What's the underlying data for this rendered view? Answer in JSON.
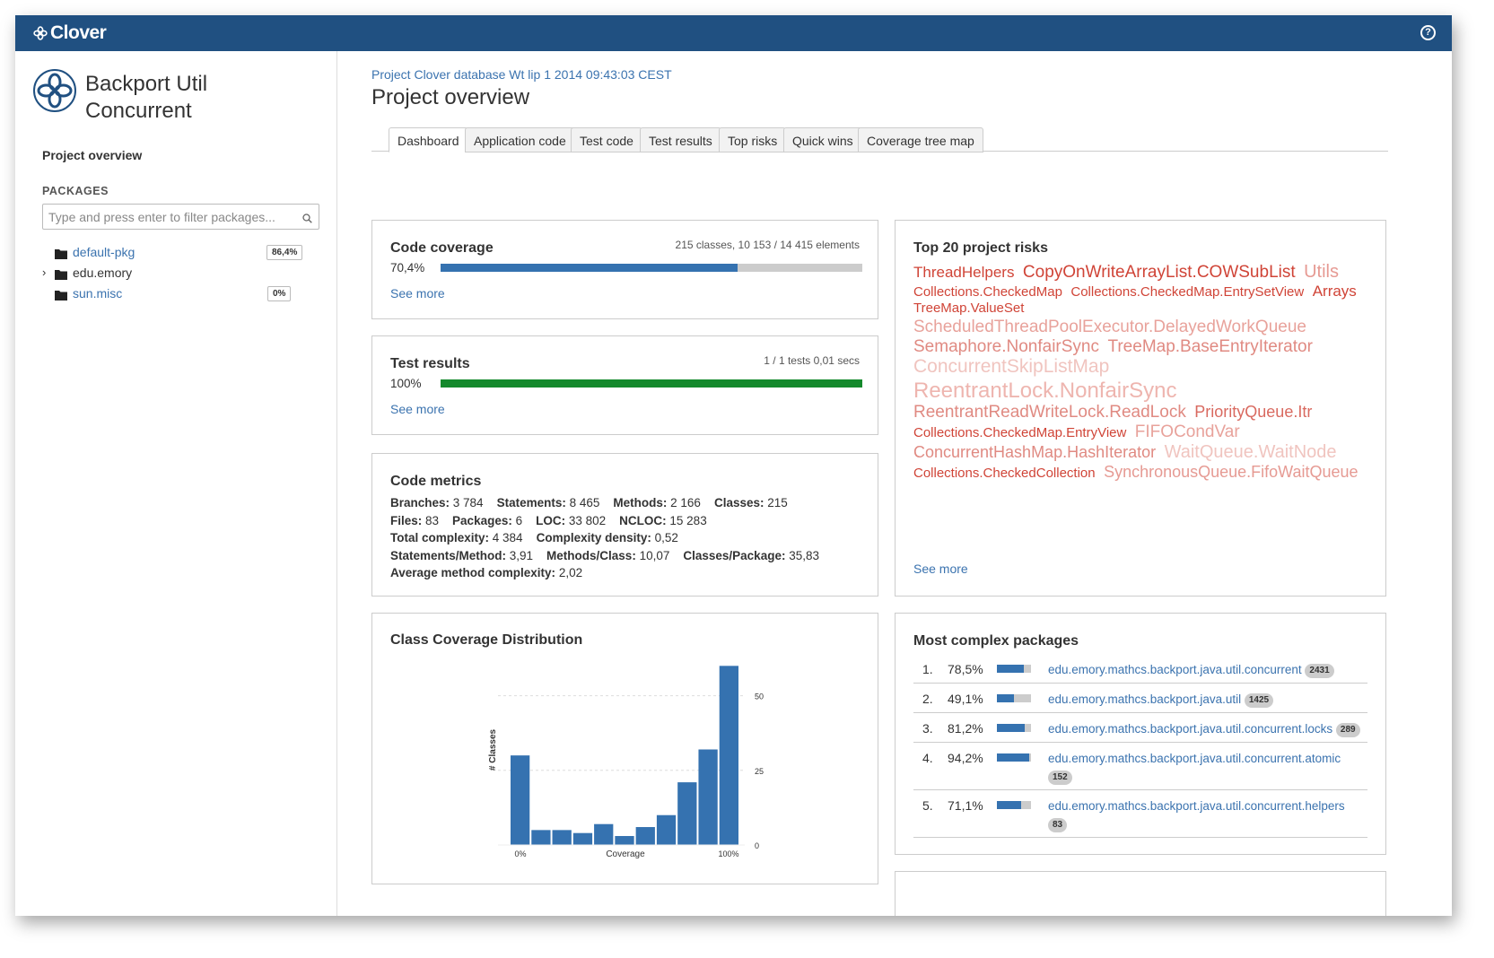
{
  "app": {
    "brand": "Clover",
    "help_label": "?"
  },
  "sidebar": {
    "project_name": "Backport Util Concurrent",
    "overview_link": "Project overview",
    "packages_heading": "PACKAGES",
    "filter_placeholder": "Type and press enter to filter packages...",
    "packages": [
      {
        "name": "default-pkg",
        "badge": "86,4%",
        "expandable": false
      },
      {
        "name": "edu.emory",
        "badge": "",
        "expandable": true
      },
      {
        "name": "sun.misc",
        "badge": "0%",
        "expandable": false
      }
    ]
  },
  "header": {
    "db_line": "Project Clover database Wt lip 1 2014 09:43:03 CEST",
    "title": "Project overview"
  },
  "tabs": [
    "Dashboard",
    "Application code",
    "Test code",
    "Test results",
    "Top risks",
    "Quick wins",
    "Coverage tree map"
  ],
  "active_tab": "Dashboard",
  "coverage": {
    "title": "Code coverage",
    "meta": "215 classes, 10 153 / 14 415 elements",
    "percent_label": "70,4%",
    "fraction": 0.704,
    "see_more": "See more",
    "bar_color": "#3572b0"
  },
  "tests": {
    "title": "Test results",
    "meta": "1 / 1 tests 0,01 secs",
    "percent_label": "100%",
    "fraction": 1.0,
    "see_more": "See more",
    "bar_color": "#14892c"
  },
  "metrics": {
    "title": "Code metrics",
    "rows": [
      [
        {
          "k": "Branches:",
          "v": "3 784"
        },
        {
          "k": "Statements:",
          "v": "8 465"
        },
        {
          "k": "Methods:",
          "v": "2 166"
        },
        {
          "k": "Classes:",
          "v": "215"
        }
      ],
      [
        {
          "k": "Files:",
          "v": "83"
        },
        {
          "k": "Packages:",
          "v": "6"
        },
        {
          "k": "LOC:",
          "v": "33 802"
        },
        {
          "k": "NCLOC:",
          "v": "15 283"
        }
      ],
      [
        {
          "k": "Total complexity:",
          "v": "4 384"
        },
        {
          "k": "Complexity density:",
          "v": "0,52"
        }
      ],
      [
        {
          "k": "Statements/Method:",
          "v": "3,91"
        },
        {
          "k": "Methods/Class:",
          "v": "10,07"
        },
        {
          "k": "Classes/Package:",
          "v": "35,83"
        }
      ],
      [
        {
          "k": "Average method complexity:",
          "v": "2,02"
        }
      ]
    ]
  },
  "chart": {
    "title": "Class Coverage Distribution",
    "bar_color": "#3572b0"
  },
  "chart_data": {
    "type": "bar",
    "title": "Class Coverage Distribution",
    "xlabel": "Coverage",
    "ylabel": "# Classes",
    "x_tick_labels": [
      "0%",
      "100%"
    ],
    "y_ticks": [
      "0",
      "25",
      "50"
    ],
    "ylim": [
      0,
      61
    ],
    "grid": true,
    "values": [
      30,
      5,
      5,
      4,
      7,
      3,
      6,
      10,
      21,
      32,
      60
    ]
  },
  "risks": {
    "title": "Top 20 project risks",
    "see_more": "See more",
    "items": [
      {
        "text": "ThreadHelpers",
        "size": 17,
        "color": "#d04437"
      },
      {
        "text": "CopyOnWriteArrayList.COWSubList",
        "size": 19,
        "color": "#d04437"
      },
      {
        "text": "Utils",
        "size": 20,
        "color": "#e69a93"
      },
      {
        "text": "Collections.CheckedMap",
        "size": 15,
        "color": "#d04437"
      },
      {
        "text": "Collections.CheckedMap.EntrySetView",
        "size": 15,
        "color": "#d04437"
      },
      {
        "text": "Arrays",
        "size": 17,
        "color": "#d04437"
      },
      {
        "text": "TreeMap.ValueSet",
        "size": 15,
        "color": "#d04437"
      },
      {
        "text": "ScheduledThreadPoolExecutor.DelayedWorkQueue",
        "size": 19,
        "color": "#e8a29b"
      },
      {
        "text": "Semaphore.NonfairSync",
        "size": 19,
        "color": "#e08a82"
      },
      {
        "text": "TreeMap.BaseEntryIterator",
        "size": 19,
        "color": "#e08a82"
      },
      {
        "text": "ConcurrentSkipListMap",
        "size": 21,
        "color": "#f0c4bf"
      },
      {
        "text": "ReentrantLock.NonfairSync",
        "size": 24,
        "color": "#eeb5af"
      },
      {
        "text": "ReentrantReadWriteLock.ReadLock",
        "size": 19,
        "color": "#e08a82"
      },
      {
        "text": "PriorityQueue.Itr",
        "size": 18,
        "color": "#d96a60"
      },
      {
        "text": "Collections.CheckedMap.EntryView",
        "size": 15,
        "color": "#d04437"
      },
      {
        "text": "FIFOCondVar",
        "size": 19,
        "color": "#e8a29b"
      },
      {
        "text": "ConcurrentHashMap.HashIterator",
        "size": 18,
        "color": "#e08a82"
      },
      {
        "text": "WaitQueue.WaitNode",
        "size": 20,
        "color": "#f0c4bf"
      },
      {
        "text": "Collections.CheckedCollection",
        "size": 15,
        "color": "#d04437"
      },
      {
        "text": "SynchronousQueue.FifoWaitQueue",
        "size": 18,
        "color": "#e69a93"
      }
    ]
  },
  "complex": {
    "title": "Most complex packages",
    "rows": [
      {
        "rank": "1.",
        "percent": "78,5%",
        "fraction": 0.785,
        "name": "edu.emory.mathcs.backport.java.util.concurrent",
        "count": "2431"
      },
      {
        "rank": "2.",
        "percent": "49,1%",
        "fraction": 0.491,
        "name": "edu.emory.mathcs.backport.java.util",
        "count": "1425"
      },
      {
        "rank": "3.",
        "percent": "81,2%",
        "fraction": 0.812,
        "name": "edu.emory.mathcs.backport.java.util.concurrent.locks",
        "count": "289"
      },
      {
        "rank": "4.",
        "percent": "94,2%",
        "fraction": 0.942,
        "name": "edu.emory.mathcs.backport.java.util.concurrent.atomic",
        "count": "152"
      },
      {
        "rank": "5.",
        "percent": "71,1%",
        "fraction": 0.711,
        "name": "edu.emory.mathcs.backport.java.util.concurrent.helpers",
        "count": "83"
      }
    ]
  }
}
